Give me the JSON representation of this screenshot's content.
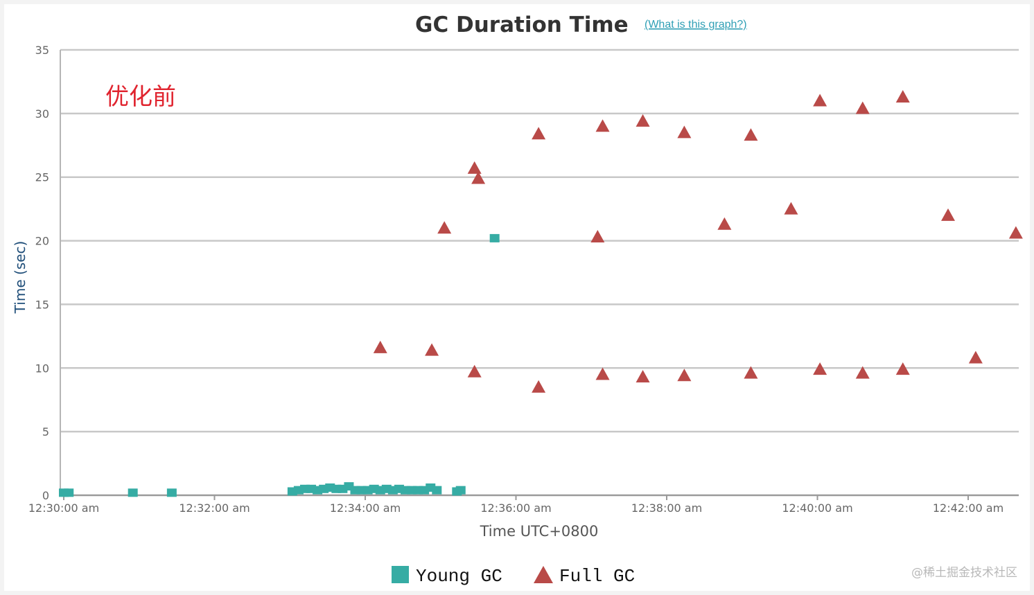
{
  "chart_data": {
    "type": "scatter",
    "title": "GC Duration Time",
    "help_link": "(What is this graph?)",
    "xlabel": "Time UTC+0800",
    "ylabel": "Time (sec)",
    "annotation": "优化前",
    "watermark": "@稀土掘金技术社区",
    "ylim": [
      0,
      35
    ],
    "yticks": [
      0,
      5,
      10,
      15,
      20,
      25,
      30,
      35
    ],
    "xlim": [
      "12:30:00",
      "12:42:40"
    ],
    "xticks": [
      {
        "t": "12:30:00",
        "label": "12:30:00 am"
      },
      {
        "t": "12:32:00",
        "label": "12:32:00 am"
      },
      {
        "t": "12:34:00",
        "label": "12:34:00 am"
      },
      {
        "t": "12:36:00",
        "label": "12:36:00 am"
      },
      {
        "t": "12:38:00",
        "label": "12:38:00 am"
      },
      {
        "t": "12:40:00",
        "label": "12:40:00 am"
      },
      {
        "t": "12:42:00",
        "label": "12:42:00 am"
      }
    ],
    "grid": true,
    "legend_position": "bottom-center",
    "series": [
      {
        "name": "Young GC",
        "marker": "square",
        "color": "#36aca4",
        "points": [
          {
            "t": "12:30:00",
            "y": 0.2
          },
          {
            "t": "12:30:04",
            "y": 0.2
          },
          {
            "t": "12:30:55",
            "y": 0.2
          },
          {
            "t": "12:31:26",
            "y": 0.2
          },
          {
            "t": "12:33:02",
            "y": 0.3
          },
          {
            "t": "12:33:07",
            "y": 0.4
          },
          {
            "t": "12:33:12",
            "y": 0.5
          },
          {
            "t": "12:33:17",
            "y": 0.5
          },
          {
            "t": "12:33:22",
            "y": 0.4
          },
          {
            "t": "12:33:27",
            "y": 0.5
          },
          {
            "t": "12:33:32",
            "y": 0.6
          },
          {
            "t": "12:33:37",
            "y": 0.5
          },
          {
            "t": "12:33:42",
            "y": 0.5
          },
          {
            "t": "12:33:47",
            "y": 0.7
          },
          {
            "t": "12:33:52",
            "y": 0.4
          },
          {
            "t": "12:33:57",
            "y": 0.4
          },
          {
            "t": "12:34:02",
            "y": 0.4
          },
          {
            "t": "12:34:07",
            "y": 0.5
          },
          {
            "t": "12:34:12",
            "y": 0.4
          },
          {
            "t": "12:34:17",
            "y": 0.5
          },
          {
            "t": "12:34:22",
            "y": 0.4
          },
          {
            "t": "12:34:27",
            "y": 0.5
          },
          {
            "t": "12:34:32",
            "y": 0.4
          },
          {
            "t": "12:34:37",
            "y": 0.4
          },
          {
            "t": "12:34:42",
            "y": 0.4
          },
          {
            "t": "12:34:47",
            "y": 0.4
          },
          {
            "t": "12:34:52",
            "y": 0.6
          },
          {
            "t": "12:34:57",
            "y": 0.4
          },
          {
            "t": "12:35:13",
            "y": 0.3
          },
          {
            "t": "12:35:16",
            "y": 0.4
          },
          {
            "t": "12:35:43",
            "y": 20.2
          }
        ]
      },
      {
        "name": "Full GC",
        "marker": "triangle",
        "color": "#b94a48",
        "points": [
          {
            "t": "12:34:12",
            "y": 11.6
          },
          {
            "t": "12:34:53",
            "y": 11.4
          },
          {
            "t": "12:35:03",
            "y": 21.0
          },
          {
            "t": "12:35:27",
            "y": 25.7
          },
          {
            "t": "12:35:30",
            "y": 24.9
          },
          {
            "t": "12:35:27",
            "y": 9.7
          },
          {
            "t": "12:36:18",
            "y": 28.4
          },
          {
            "t": "12:36:18",
            "y": 8.5
          },
          {
            "t": "12:37:05",
            "y": 20.3
          },
          {
            "t": "12:37:09",
            "y": 29.0
          },
          {
            "t": "12:37:09",
            "y": 9.5
          },
          {
            "t": "12:37:41",
            "y": 29.4
          },
          {
            "t": "12:37:41",
            "y": 9.3
          },
          {
            "t": "12:38:14",
            "y": 28.5
          },
          {
            "t": "12:38:14",
            "y": 9.4
          },
          {
            "t": "12:38:46",
            "y": 21.3
          },
          {
            "t": "12:39:07",
            "y": 28.3
          },
          {
            "t": "12:39:07",
            "y": 9.6
          },
          {
            "t": "12:39:39",
            "y": 22.5
          },
          {
            "t": "12:40:02",
            "y": 31.0
          },
          {
            "t": "12:40:02",
            "y": 9.9
          },
          {
            "t": "12:40:36",
            "y": 30.4
          },
          {
            "t": "12:40:36",
            "y": 9.6
          },
          {
            "t": "12:41:08",
            "y": 31.3
          },
          {
            "t": "12:41:08",
            "y": 9.9
          },
          {
            "t": "12:41:44",
            "y": 22.0
          },
          {
            "t": "12:42:06",
            "y": 10.8
          },
          {
            "t": "12:42:38",
            "y": 20.6
          }
        ]
      }
    ]
  }
}
